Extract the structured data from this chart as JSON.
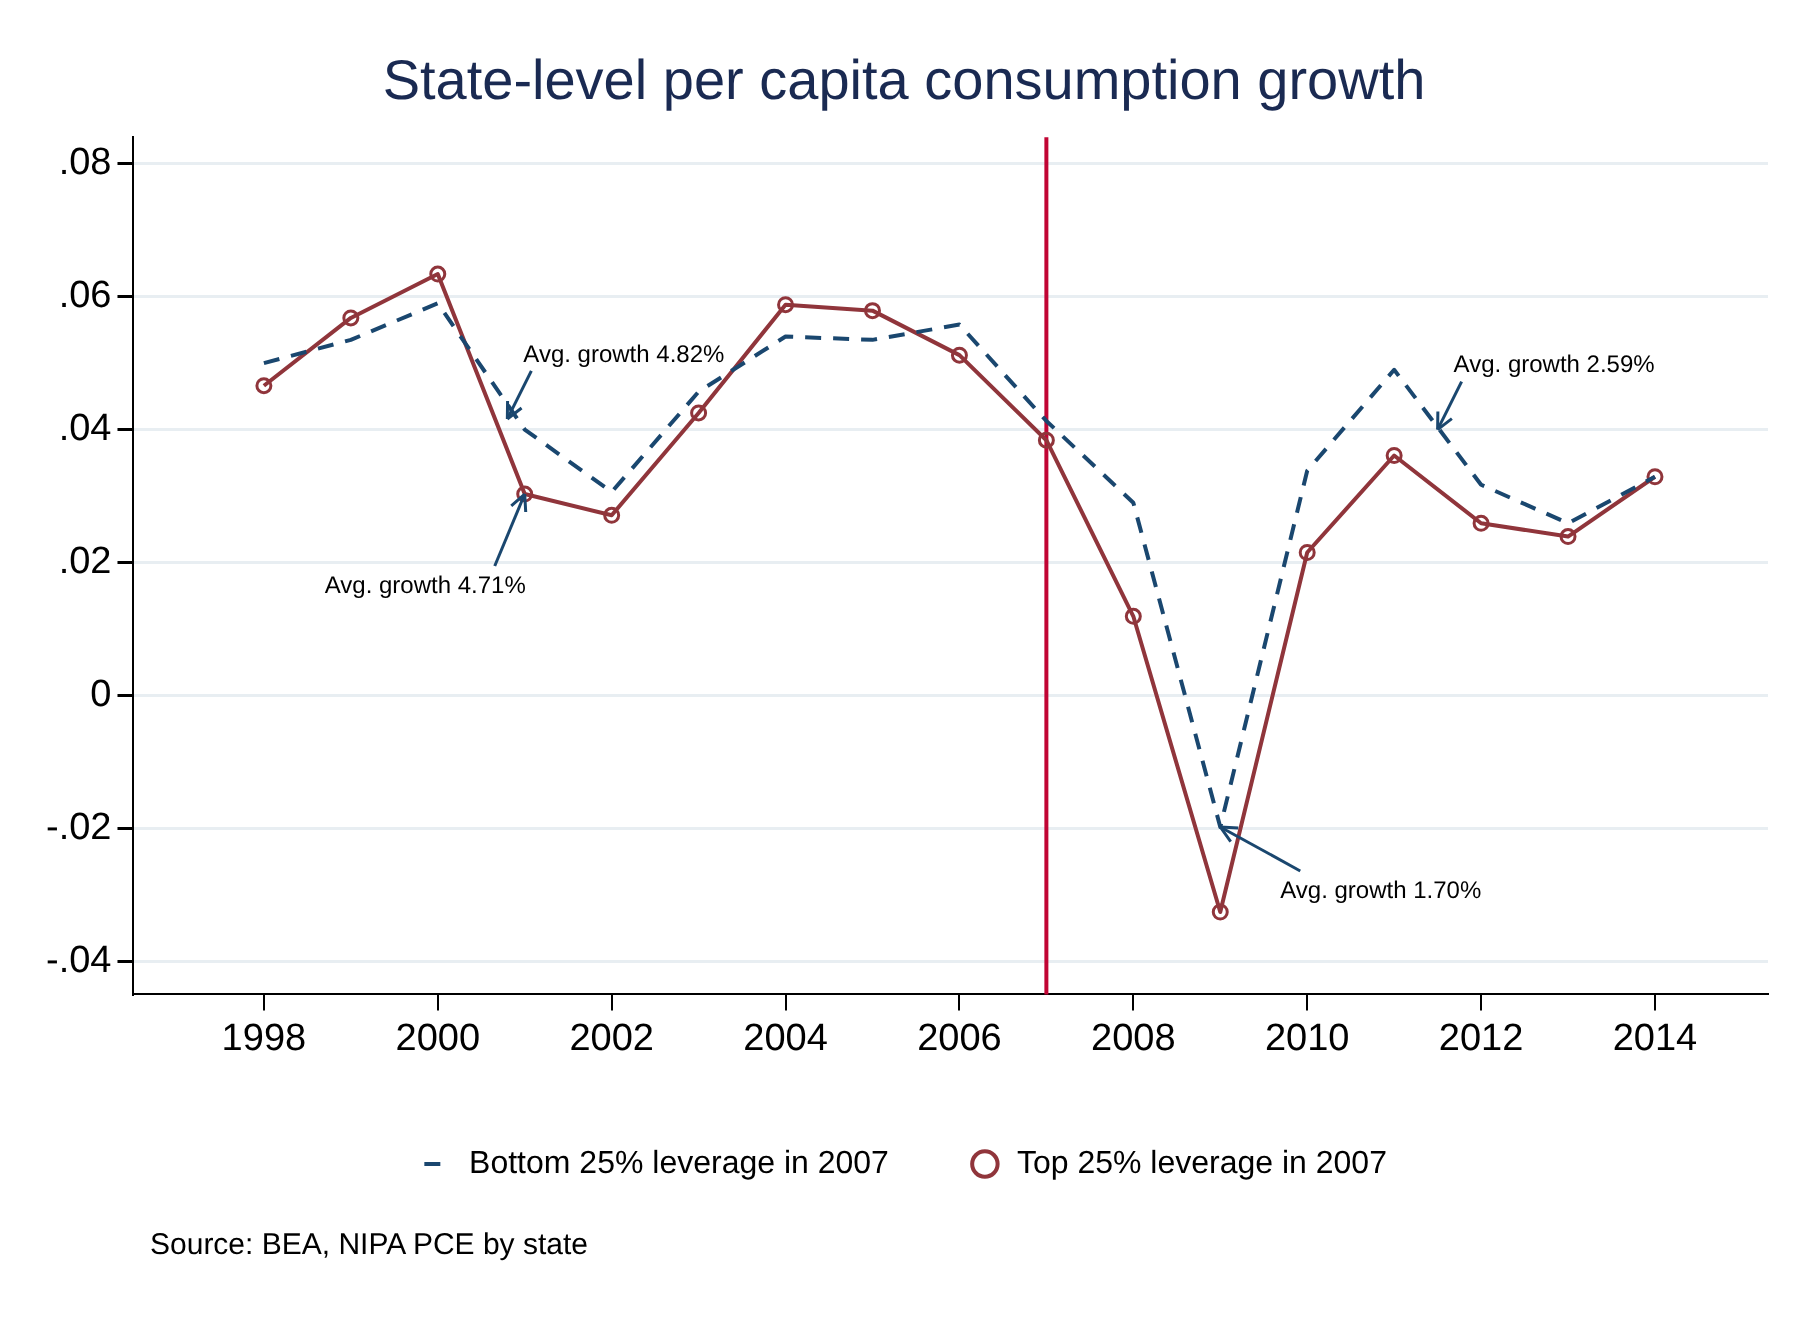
{
  "chart_data": {
    "type": "line",
    "title": "State-level per capita consumption growth",
    "x": [
      1998,
      1999,
      2000,
      2001,
      2002,
      2003,
      2004,
      2005,
      2006,
      2007,
      2008,
      2009,
      2010,
      2011,
      2012,
      2013,
      2014
    ],
    "series": [
      {
        "name": "Bottom 25% leverage in 2007",
        "color": "#1a476f",
        "line_style": "dashed",
        "marker": "none",
        "values": [
          0.05,
          0.0535,
          0.059,
          0.04,
          0.0306,
          0.0457,
          0.054,
          0.0535,
          0.0558,
          0.0413,
          0.029,
          -0.0198,
          0.0338,
          0.049,
          0.0317,
          0.0259,
          0.0329
        ]
      },
      {
        "name": "Top 25% leverage in 2007",
        "color": "#90353b",
        "line_style": "solid",
        "marker": "circle",
        "values": [
          0.0466,
          0.0568,
          0.0634,
          0.0303,
          0.0271,
          0.0425,
          0.0588,
          0.0579,
          0.0512,
          0.0384,
          0.0119,
          -0.0326,
          0.0215,
          0.0361,
          0.0259,
          0.0239,
          0.0329
        ]
      }
    ],
    "xlim": [
      1996.5,
      2015.3
    ],
    "xticks": [
      1998,
      2000,
      2002,
      2004,
      2006,
      2008,
      2010,
      2012,
      2014
    ],
    "ylim": [
      -0.045,
      0.084
    ],
    "yticks": [
      {
        "value": -0.04,
        "label": "-.04"
      },
      {
        "value": -0.02,
        "label": "-.02"
      },
      0,
      {
        "value": 0.02,
        "label": ".02"
      },
      {
        "value": 0.04,
        "label": ".04"
      },
      {
        "value": 0.06,
        "label": ".06"
      },
      {
        "value": 0.08,
        "label": ".08"
      }
    ],
    "grid": "y",
    "legend": "bottom",
    "ref_lines": [
      {
        "axis": "x",
        "value": 2007,
        "color": "#c10534"
      }
    ],
    "annotations": [
      {
        "text": "Avg. growth 4.82%",
        "x": 2000.8,
        "y": 0.0416
      },
      {
        "text": "Avg. growth 4.71%",
        "x": 2001,
        "y": 0.0303
      },
      {
        "text": "Avg. growth 2.59%",
        "x": 2011.5,
        "y": 0.04
      },
      {
        "text": "Avg. growth 1.70%",
        "x": 2009,
        "y": -0.0198
      },
      "Source: BEA, NIPA PCE by state"
    ]
  }
}
